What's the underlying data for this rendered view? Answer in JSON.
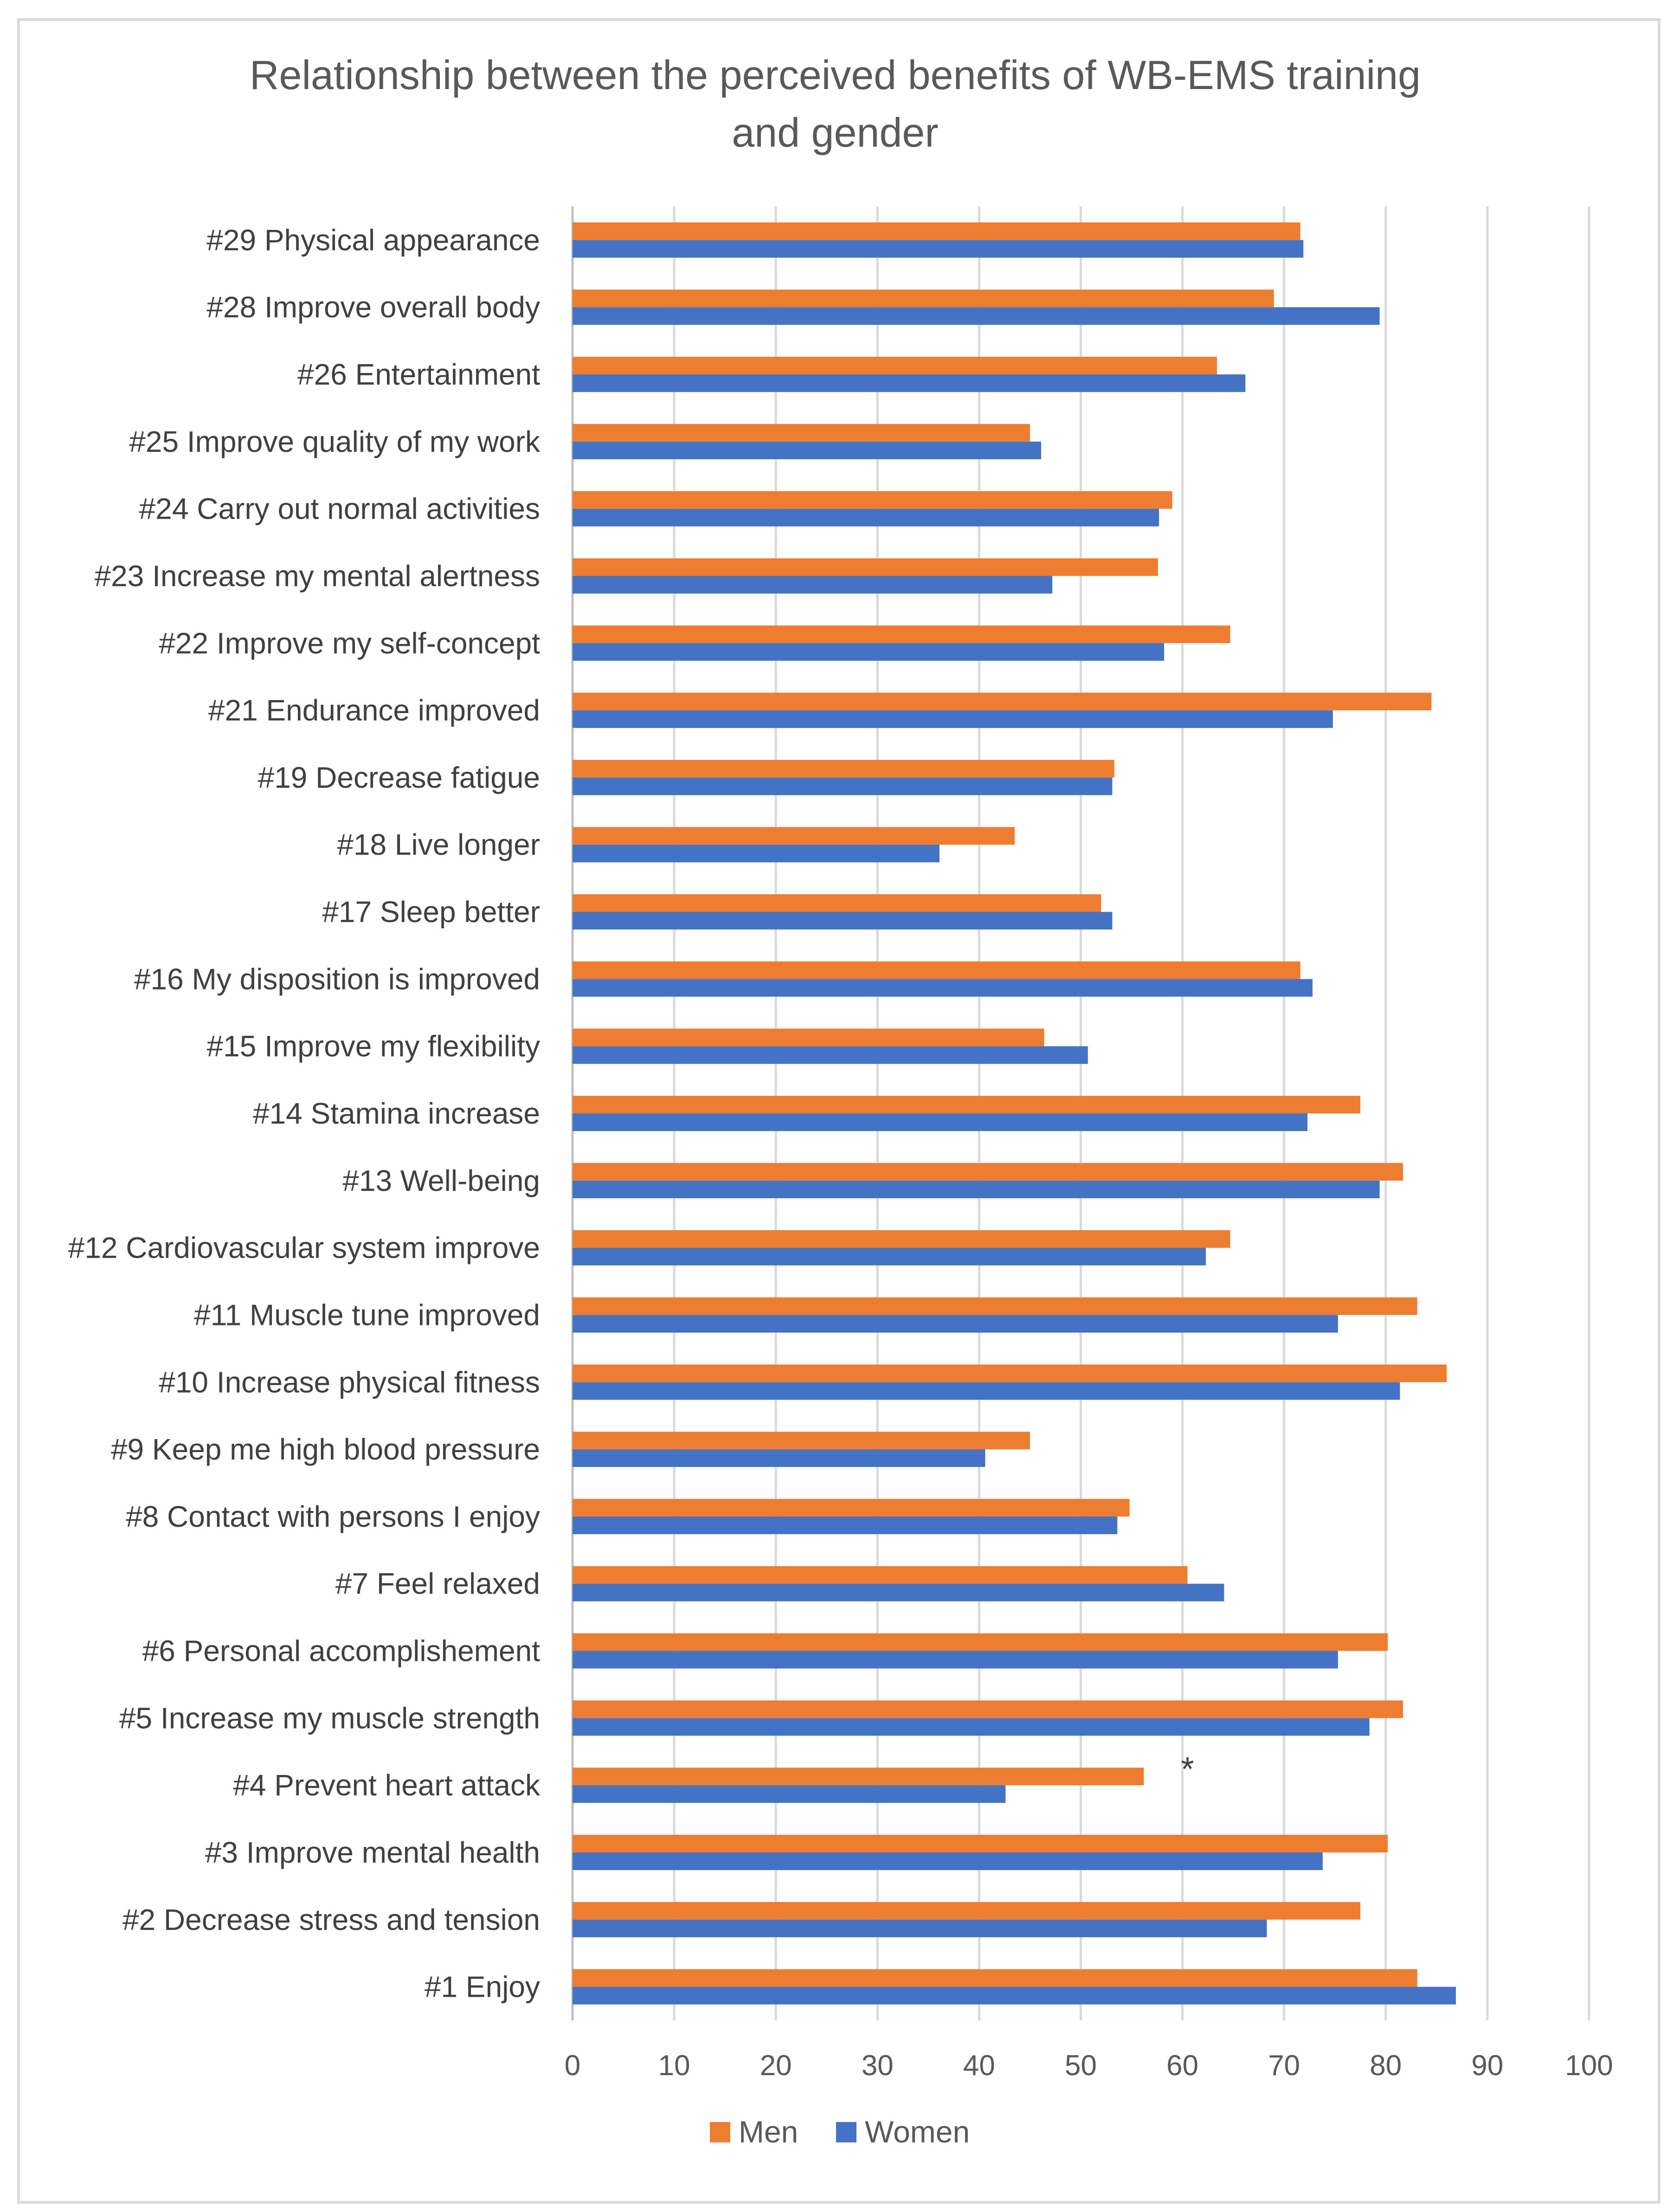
{
  "chart_data": {
    "type": "bar",
    "orientation": "horizontal",
    "title": "Relationship between the perceived benefits of WB-EMS training and gender",
    "title_lines": [
      "Relationship between the perceived benefits of WB-EMS training",
      "and gender"
    ],
    "xlabel": "",
    "ylabel": "",
    "xlim": [
      0,
      100
    ],
    "x_ticks": [
      0,
      10,
      20,
      30,
      40,
      50,
      60,
      70,
      80,
      90,
      100
    ],
    "grid": true,
    "legend_position": "bottom",
    "categories": [
      "#29 Physical appearance",
      "#28 Improve overall body",
      "#26 Entertainment",
      "#25 Improve quality of my work",
      "#24 Carry out normal activities",
      "#23 Increase my mental alertness",
      "#22 Improve my self-concept",
      "#21 Endurance improved",
      "#19 Decrease fatigue",
      "#18 Live longer",
      "#17 Sleep better",
      "#16 My disposition is improved",
      "#15 Improve my flexibility",
      "#14 Stamina increase",
      "#13 Well-being",
      "#12 Cardiovascular system improve",
      "#11 Muscle tune improved",
      "#10 Increase physical fitness",
      "#9 Keep me high blood pressure",
      "#8 Contact with persons I enjoy",
      "#7 Feel relaxed",
      "#6 Personal accomplishement",
      "#5 Increase my muscle strength",
      "#4 Prevent heart attack",
      "#3 Improve mental health",
      "#2 Decrease stress and tension",
      "#1 Enjoy"
    ],
    "series": [
      {
        "name": "Men",
        "color": "#ED7D31",
        "values": [
          71.6,
          69,
          63.4,
          45,
          59,
          57.6,
          64.7,
          84.5,
          53.3,
          43.5,
          52,
          71.6,
          46.4,
          77.5,
          81.7,
          64.7,
          83.1,
          86,
          45,
          54.8,
          60.5,
          80.2,
          81.7,
          56.2,
          80.2,
          77.5,
          83.1
        ]
      },
      {
        "name": "Women",
        "color": "#4472C4",
        "values": [
          71.9,
          79.4,
          66.2,
          46.1,
          57.7,
          47.2,
          58.2,
          74.8,
          53.1,
          36.1,
          53.1,
          72.8,
          50.7,
          72.3,
          79.4,
          62.3,
          75.3,
          81.4,
          40.6,
          53.6,
          64.1,
          75.3,
          78.4,
          42.6,
          73.8,
          68.3,
          86.9
        ]
      }
    ],
    "annotations": [
      {
        "category": "#4 Prevent heart attack",
        "text": "*",
        "x": 60.5
      }
    ]
  }
}
